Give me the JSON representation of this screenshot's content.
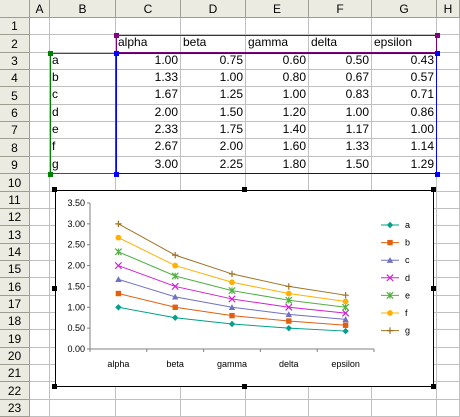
{
  "columns": [
    "A",
    "B",
    "C",
    "D",
    "E",
    "F",
    "G",
    "H"
  ],
  "rows": [
    "1",
    "2",
    "3",
    "4",
    "5",
    "6",
    "7",
    "8",
    "9",
    "10",
    "11",
    "12",
    "13",
    "14",
    "15",
    "16",
    "17",
    "18",
    "19",
    "20",
    "21",
    "22",
    "23"
  ],
  "headers": [
    "alpha",
    "beta",
    "gamma",
    "delta",
    "epsilon"
  ],
  "table": [
    {
      "label": "a",
      "values": [
        "1.00",
        "0.75",
        "0.60",
        "0.50",
        "0.43"
      ]
    },
    {
      "label": "b",
      "values": [
        "1.33",
        "1.00",
        "0.80",
        "0.67",
        "0.57"
      ]
    },
    {
      "label": "c",
      "values": [
        "1.67",
        "1.25",
        "1.00",
        "0.83",
        "0.71"
      ]
    },
    {
      "label": "d",
      "values": [
        "2.00",
        "1.50",
        "1.20",
        "1.00",
        "0.86"
      ]
    },
    {
      "label": "e",
      "values": [
        "2.33",
        "1.75",
        "1.40",
        "1.17",
        "1.00"
      ]
    },
    {
      "label": "f",
      "values": [
        "2.67",
        "2.00",
        "1.60",
        "1.33",
        "1.14"
      ]
    },
    {
      "label": "g",
      "values": [
        "3.00",
        "2.25",
        "1.80",
        "1.50",
        "1.29"
      ]
    }
  ],
  "range_colors": {
    "headers": "#800080",
    "labels": "#008000",
    "values": "#0000ff"
  },
  "chart_data": {
    "type": "line",
    "categories": [
      "alpha",
      "beta",
      "gamma",
      "delta",
      "epsilon"
    ],
    "ylim": [
      0,
      3.5
    ],
    "yticks": [
      "0.00",
      "0.50",
      "1.00",
      "1.50",
      "2.00",
      "2.50",
      "3.00",
      "3.50"
    ],
    "grid": false,
    "legend": "right",
    "series": [
      {
        "name": "a",
        "values": [
          1.0,
          0.75,
          0.6,
          0.5,
          0.43
        ],
        "color": "#00a08a",
        "marker": "diamond"
      },
      {
        "name": "b",
        "values": [
          1.33,
          1.0,
          0.8,
          0.67,
          0.57
        ],
        "color": "#e06010",
        "marker": "square"
      },
      {
        "name": "c",
        "values": [
          1.67,
          1.25,
          1.0,
          0.83,
          0.71
        ],
        "color": "#6f72c0",
        "marker": "triangle"
      },
      {
        "name": "d",
        "values": [
          2.0,
          1.5,
          1.2,
          1.0,
          0.86
        ],
        "color": "#d020d0",
        "marker": "x"
      },
      {
        "name": "e",
        "values": [
          2.33,
          1.75,
          1.4,
          1.17,
          1.0
        ],
        "color": "#50b040",
        "marker": "star"
      },
      {
        "name": "f",
        "values": [
          2.67,
          2.0,
          1.6,
          1.33,
          1.14
        ],
        "color": "#ffb000",
        "marker": "circle"
      },
      {
        "name": "g",
        "values": [
          3.0,
          2.25,
          1.8,
          1.5,
          1.29
        ],
        "color": "#a07020",
        "marker": "plus"
      }
    ]
  }
}
